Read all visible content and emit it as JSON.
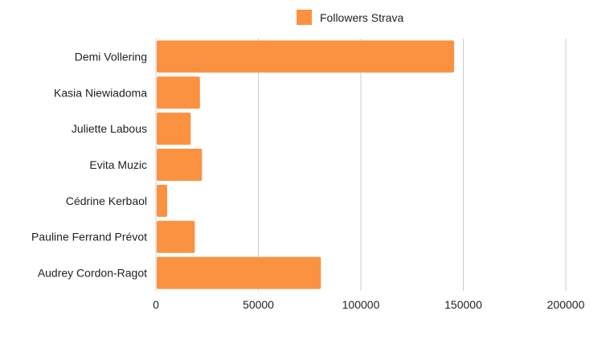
{
  "chart_data": {
    "type": "bar",
    "orientation": "horizontal",
    "categories": [
      "Demi Vollering",
      "Kasia Niewiadoma",
      "Juliette Labous",
      "Evita Muzic",
      "Cédrine Kerbaol",
      "Pauline Ferrand Prévot",
      "Audrey Cordon-Ragot"
    ],
    "series": [
      {
        "name": "Followers Strava",
        "color": "#fb9241",
        "values": [
          145500,
          21500,
          17000,
          22500,
          5500,
          19000,
          80500
        ]
      }
    ],
    "xlim": [
      0,
      200000
    ],
    "xticks": [
      0,
      50000,
      100000,
      150000,
      200000
    ],
    "x_tick_labels": [
      "0",
      "50000",
      "100000",
      "150000",
      "200000"
    ],
    "grid": "vertical",
    "legend_position": "top-center"
  }
}
